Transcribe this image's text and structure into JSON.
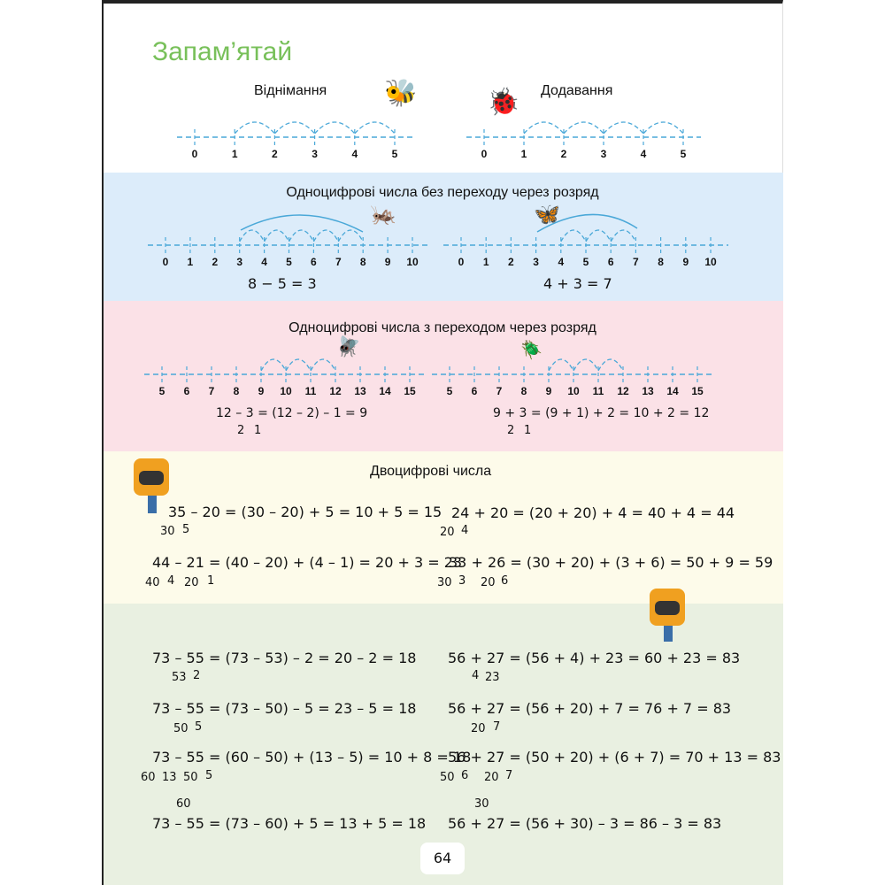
{
  "title": "Запам’ятай",
  "colors": {
    "title": "#78c05a",
    "line": "#4aa8d8",
    "band_blue": "#dcecfa",
    "band_pink": "#fbe1e7",
    "band_cream": "#fdfbea",
    "band_green": "#e9f0e1"
  },
  "intro": {
    "sub_label": "Віднімання",
    "add_label": "Додавання",
    "ticks": [
      "0",
      "1",
      "2",
      "3",
      "4",
      "5"
    ]
  },
  "single_no_carry": {
    "heading": "Одноцифрові числа без переходу через розряд",
    "ticks": [
      "0",
      "1",
      "2",
      "3",
      "4",
      "5",
      "6",
      "7",
      "8",
      "9",
      "10"
    ],
    "eq_left": "8 − 5 = 3",
    "eq_right": "4 + 3 = 7"
  },
  "single_carry": {
    "heading": "Одноцифрові числа з переходом через розряд",
    "ticks": [
      "5",
      "6",
      "7",
      "8",
      "9",
      "10",
      "11",
      "12",
      "13",
      "14",
      "15"
    ],
    "eq_left": "12 – 3 = (12 – 2) – 1 = 9",
    "eq_left_parts": [
      "2",
      "1"
    ],
    "eq_right": "9 + 3 = (9 + 1) + 2 = 10 + 2 = 12",
    "eq_right_parts": [
      "2",
      "1"
    ]
  },
  "two_digit": {
    "heading": "Двоцифрові числа",
    "rows": [
      {
        "expr": "35 – 20 = (30 – 20) + 5 = 10 + 5 = 15",
        "parts": [
          "30",
          "5"
        ]
      },
      {
        "expr": "24 + 20 = (20 + 20) + 4 = 40 + 4 = 44",
        "parts": [
          "20",
          "4"
        ]
      },
      {
        "expr": "44  –  21 = (40 – 20) + (4 – 1) = 20 + 3 = 23",
        "parts": [
          "40",
          "4",
          "20",
          "1"
        ]
      },
      {
        "expr": "33  +  26 = (30 + 20) + (3 + 6) = 50 + 9 = 59",
        "parts": [
          "30",
          "3",
          "20",
          "6"
        ]
      }
    ]
  },
  "examples": {
    "rows": [
      {
        "expr": "73 – 55 = (73 – 53) – 2 = 20 – 2 = 18",
        "parts": [
          "53",
          "2"
        ]
      },
      {
        "expr": "56 + 27 = (56 + 4) + 23 = 60 + 23 = 83",
        "parts": [
          "4",
          "23"
        ]
      },
      {
        "expr": "73 – 55 = (73 – 50) – 5 = 23 – 5 = 18",
        "parts": [
          "50",
          "5"
        ]
      },
      {
        "expr": "56 + 27 = (56 + 20) + 7 = 76 + 7 = 83",
        "parts": [
          "20",
          "7"
        ]
      },
      {
        "expr": "73  –  55 = (60 – 50) + (13 – 5) = 10 + 8 = 18",
        "parts": [
          "60",
          "13",
          "50",
          "5"
        ]
      },
      {
        "expr": "56   +   27 = (50 + 20) + (6 + 7) = 70 + 13 = 83",
        "parts": [
          "50",
          "6",
          "20",
          "7"
        ]
      },
      {
        "expr": "73 – 55 = (73 – 60) + 5 = 13 + 5 = 18",
        "parts": [
          "60"
        ]
      },
      {
        "expr": "56 + 27 = (56 + 30) – 3 = 86 – 3 = 83",
        "parts": [
          "30"
        ]
      }
    ]
  },
  "page_number": "64"
}
